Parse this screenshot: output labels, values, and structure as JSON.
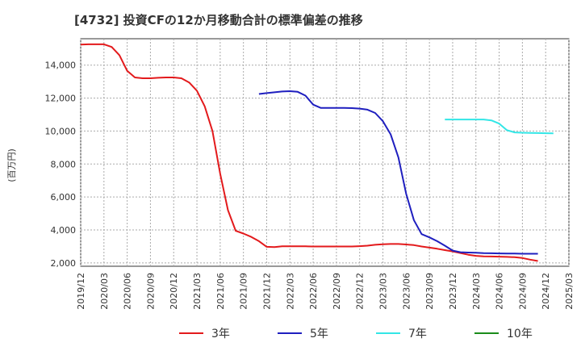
{
  "chart_data": {
    "type": "line",
    "title": "[4732]  投資CFの12か月移動合計の標準偏差の推移",
    "ylabel": "(百万円)",
    "xlabel": "",
    "ylim": [
      1800,
      15600
    ],
    "yticks": [
      2000,
      4000,
      6000,
      8000,
      10000,
      12000,
      14000
    ],
    "ytick_labels": [
      "2,000",
      "4,000",
      "6,000",
      "8,000",
      "10,000",
      "12,000",
      "14,000"
    ],
    "xtick_labels": [
      "2019/12",
      "2020/03",
      "2020/06",
      "2020/09",
      "2020/12",
      "2021/03",
      "2021/06",
      "2021/09",
      "2021/12",
      "2022/03",
      "2022/06",
      "2022/09",
      "2022/12",
      "2023/03",
      "2023/06",
      "2023/09",
      "2023/12",
      "2024/03",
      "2024/06",
      "2024/09",
      "2024/12",
      "2025/03"
    ],
    "grid": true,
    "legend_position": "bottom",
    "series": [
      {
        "name": "3年",
        "color": "#e31a1c",
        "start_index": 0,
        "values": [
          15250,
          15260,
          15260,
          15260,
          15100,
          14600,
          13650,
          13250,
          13200,
          13200,
          13230,
          13250,
          13250,
          13200,
          12950,
          12450,
          11500,
          10000,
          7400,
          5200,
          3950,
          3780,
          3580,
          3320,
          2980,
          2960,
          3010,
          3010,
          3010,
          3010,
          3000,
          3000,
          3000,
          3000,
          3000,
          3000,
          3020,
          3050,
          3100,
          3130,
          3150,
          3150,
          3120,
          3080,
          3000,
          2930,
          2860,
          2780,
          2700,
          2600,
          2500,
          2430,
          2400,
          2390,
          2380,
          2370,
          2350,
          2300,
          2200,
          2120
        ]
      },
      {
        "name": "5年",
        "color": "#1f1fbf",
        "start_index": 23,
        "values": [
          12250,
          12300,
          12350,
          12400,
          12420,
          12380,
          12150,
          11600,
          11400,
          11400,
          11400,
          11400,
          11390,
          11360,
          11300,
          11100,
          10600,
          9800,
          8400,
          6200,
          4600,
          3750,
          3550,
          3320,
          3050,
          2750,
          2650,
          2630,
          2620,
          2600,
          2590,
          2580,
          2570,
          2570,
          2560,
          2560,
          2560
        ]
      },
      {
        "name": "7年",
        "color": "#33e6e6",
        "start_index": 47,
        "values": [
          10700,
          10700,
          10700,
          10700,
          10700,
          10700,
          10650,
          10450,
          10050,
          9920,
          9900,
          9890,
          9880,
          9870,
          9860
        ]
      },
      {
        "name": "10年",
        "color": "#1a8c1a",
        "start_index": 0,
        "values": []
      }
    ]
  }
}
